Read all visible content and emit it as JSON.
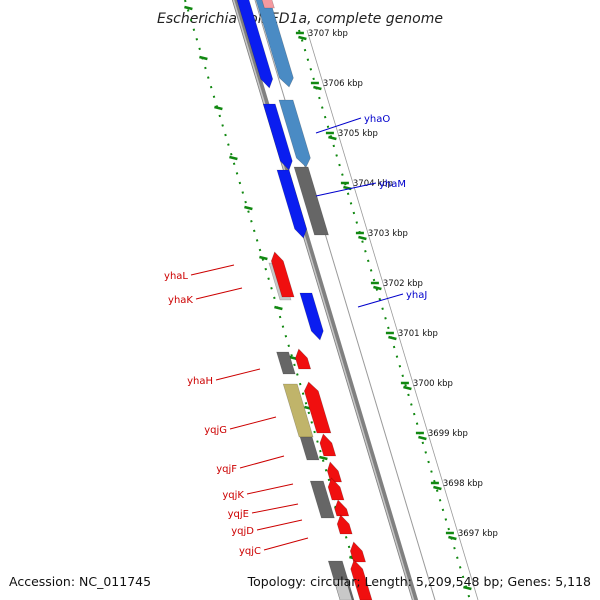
{
  "title": "Escherichia coli ED1a, complete genome",
  "accession": "Accession: NC_011745",
  "summary": "Topology: circular; Length: 5,209,548 bp; Genes: 5,118",
  "colors": {
    "forward_label": "#0000cc",
    "reverse_label": "#cc0000",
    "ruler": "#118811",
    "backbone": "#808080"
  },
  "kbp_ticks": [
    "3707 kbp",
    "3706 kbp",
    "3705 kbp",
    "3704 kbp",
    "3703 kbp",
    "3702 kbp",
    "3701 kbp",
    "3700 kbp",
    "3699 kbp",
    "3698 kbp",
    "3697 kbp"
  ],
  "forward_gene_labels": [
    "yhaO",
    "yhaM",
    "yhaJ"
  ],
  "reverse_gene_labels": [
    "yhaL",
    "yhaK",
    "yhaH",
    "yqjG",
    "yqjF",
    "yqjK",
    "yqjE",
    "yqjD",
    "yqjC"
  ]
}
